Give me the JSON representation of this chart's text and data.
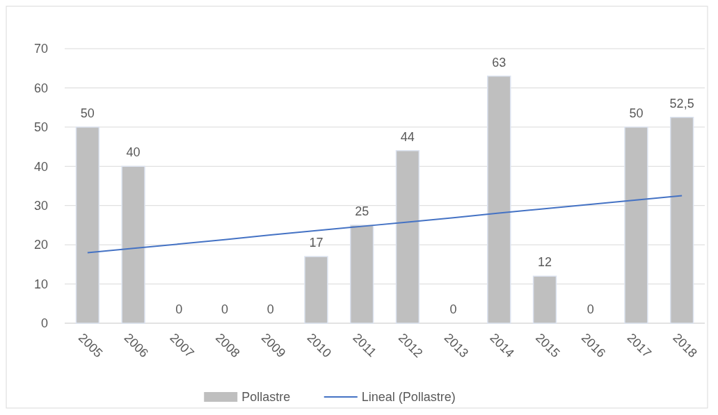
{
  "chart_data": {
    "type": "bar",
    "categories": [
      "2005",
      "2006",
      "2007",
      "2008",
      "2009",
      "2010",
      "2011",
      "2012",
      "2013",
      "2014",
      "2015",
      "2016",
      "2017",
      "2018"
    ],
    "series": [
      {
        "name": "Pollastre",
        "color": "#bfbfbf",
        "values": [
          50,
          40,
          0,
          0,
          0,
          17,
          25,
          44,
          0,
          63,
          12,
          0,
          50,
          52.5
        ],
        "value_labels": [
          "50",
          "40",
          "0",
          "0",
          "0",
          "17",
          "25",
          "44",
          "0",
          "63",
          "12",
          "0",
          "50",
          "52,5"
        ]
      },
      {
        "name": "Lineal (Pollastre)",
        "type": "line",
        "color": "#4472c4",
        "values": [
          18,
          19.1,
          20.2,
          21.3,
          22.5,
          23.6,
          24.7,
          25.8,
          26.9,
          28.1,
          29.2,
          30.3,
          31.4,
          32.5
        ]
      }
    ],
    "ylim": [
      0,
      70
    ],
    "yticks": [
      0,
      10,
      20,
      30,
      40,
      50,
      60,
      70
    ],
    "grid": "y",
    "legend": "bottom"
  }
}
